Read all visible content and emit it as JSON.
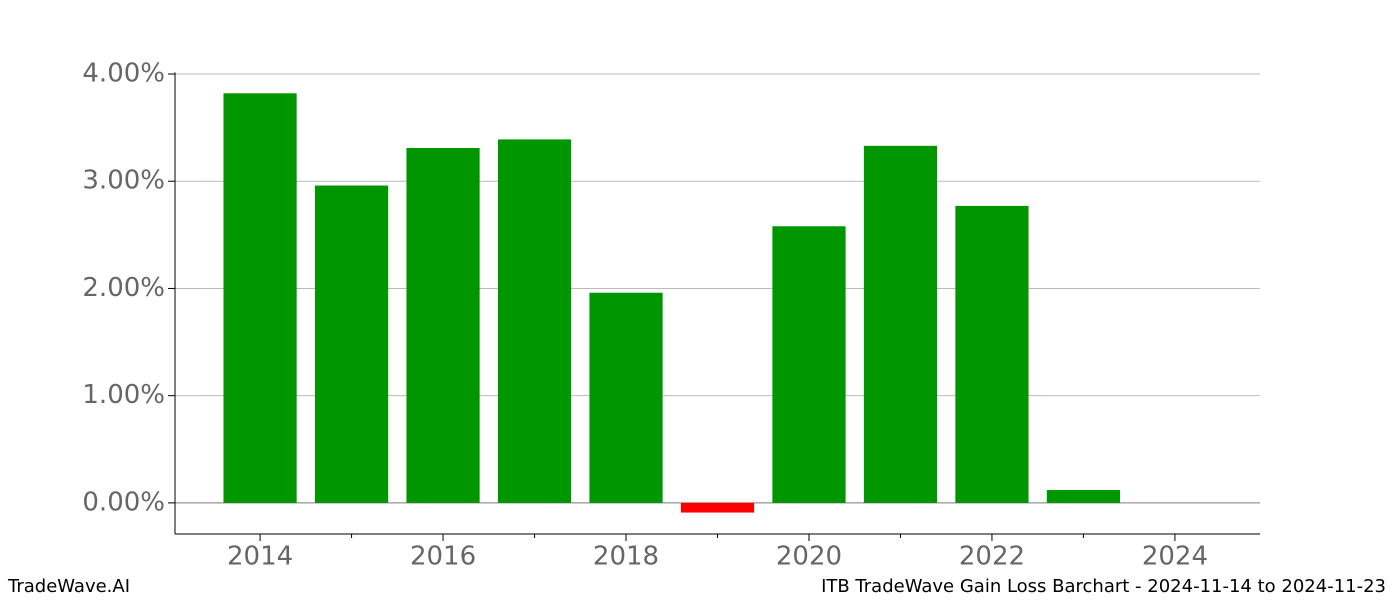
{
  "chart_data": {
    "type": "bar",
    "title": "ITB TradeWave Gain Loss Barchart - 2024-11-14 to 2024-11-23",
    "watermark": "TradeWave.AI",
    "x": [
      2014,
      2015,
      2016,
      2017,
      2018,
      2019,
      2020,
      2021,
      2022,
      2023
    ],
    "values": [
      3.82,
      2.96,
      3.31,
      3.39,
      1.96,
      -0.09,
      2.58,
      3.33,
      2.77,
      0.12
    ],
    "colors": [
      "#009600",
      "#009600",
      "#009600",
      "#009600",
      "#009600",
      "#ff0000",
      "#009600",
      "#009600",
      "#009600",
      "#009600"
    ],
    "bar_width": 0.8,
    "xlim": [
      2013.07,
      2024.93
    ],
    "xticks": [
      2014,
      2016,
      2018,
      2020,
      2022,
      2024
    ],
    "xminorticks": [
      2015,
      2017,
      2019,
      2021,
      2023
    ],
    "ylim": [
      -0.29,
      4.015
    ],
    "yticks": [
      {
        "value": 0,
        "label": "0.00%"
      },
      {
        "value": 1,
        "label": "1.00%"
      },
      {
        "value": 2,
        "label": "2.00%"
      },
      {
        "value": 3,
        "label": "3.00%"
      },
      {
        "value": 4,
        "label": "4.00%"
      }
    ],
    "grid": true
  }
}
